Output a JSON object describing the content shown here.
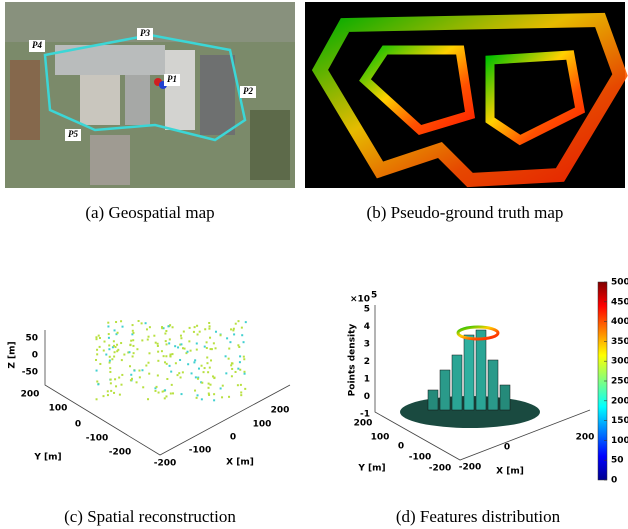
{
  "panels": [
    {
      "caption": "(a) Geospatial map",
      "labels": [
        "P1",
        "P2",
        "P3",
        "P4",
        "P5"
      ]
    },
    {
      "caption": "(b) Pseudo-ground truth map"
    },
    {
      "caption": "(c) Spatial reconstruction",
      "z_label": "Z [m]",
      "z_ticks": [
        50,
        0,
        -50
      ],
      "y_label": "Y [m]",
      "y_ticks": [
        200,
        100,
        0,
        -100,
        -200
      ],
      "x_label": "X [m]",
      "x_ticks": [
        200,
        100,
        0,
        -100,
        -200
      ]
    },
    {
      "caption": "(d) Features distribution",
      "z_scale": "×10",
      "z_exp": "5",
      "z_label": "Points density",
      "z_ticks": [
        5,
        4,
        3,
        2,
        1,
        0,
        -1
      ],
      "y_label": "Y [m]",
      "y_ticks": [
        200,
        100,
        0,
        -100,
        -200
      ],
      "x_label": "X [m]",
      "x_ticks": [
        200,
        0,
        -200
      ],
      "colorbar_ticks": [
        500,
        450,
        400,
        350,
        300,
        250,
        200,
        150,
        100,
        50,
        0
      ]
    }
  ]
}
